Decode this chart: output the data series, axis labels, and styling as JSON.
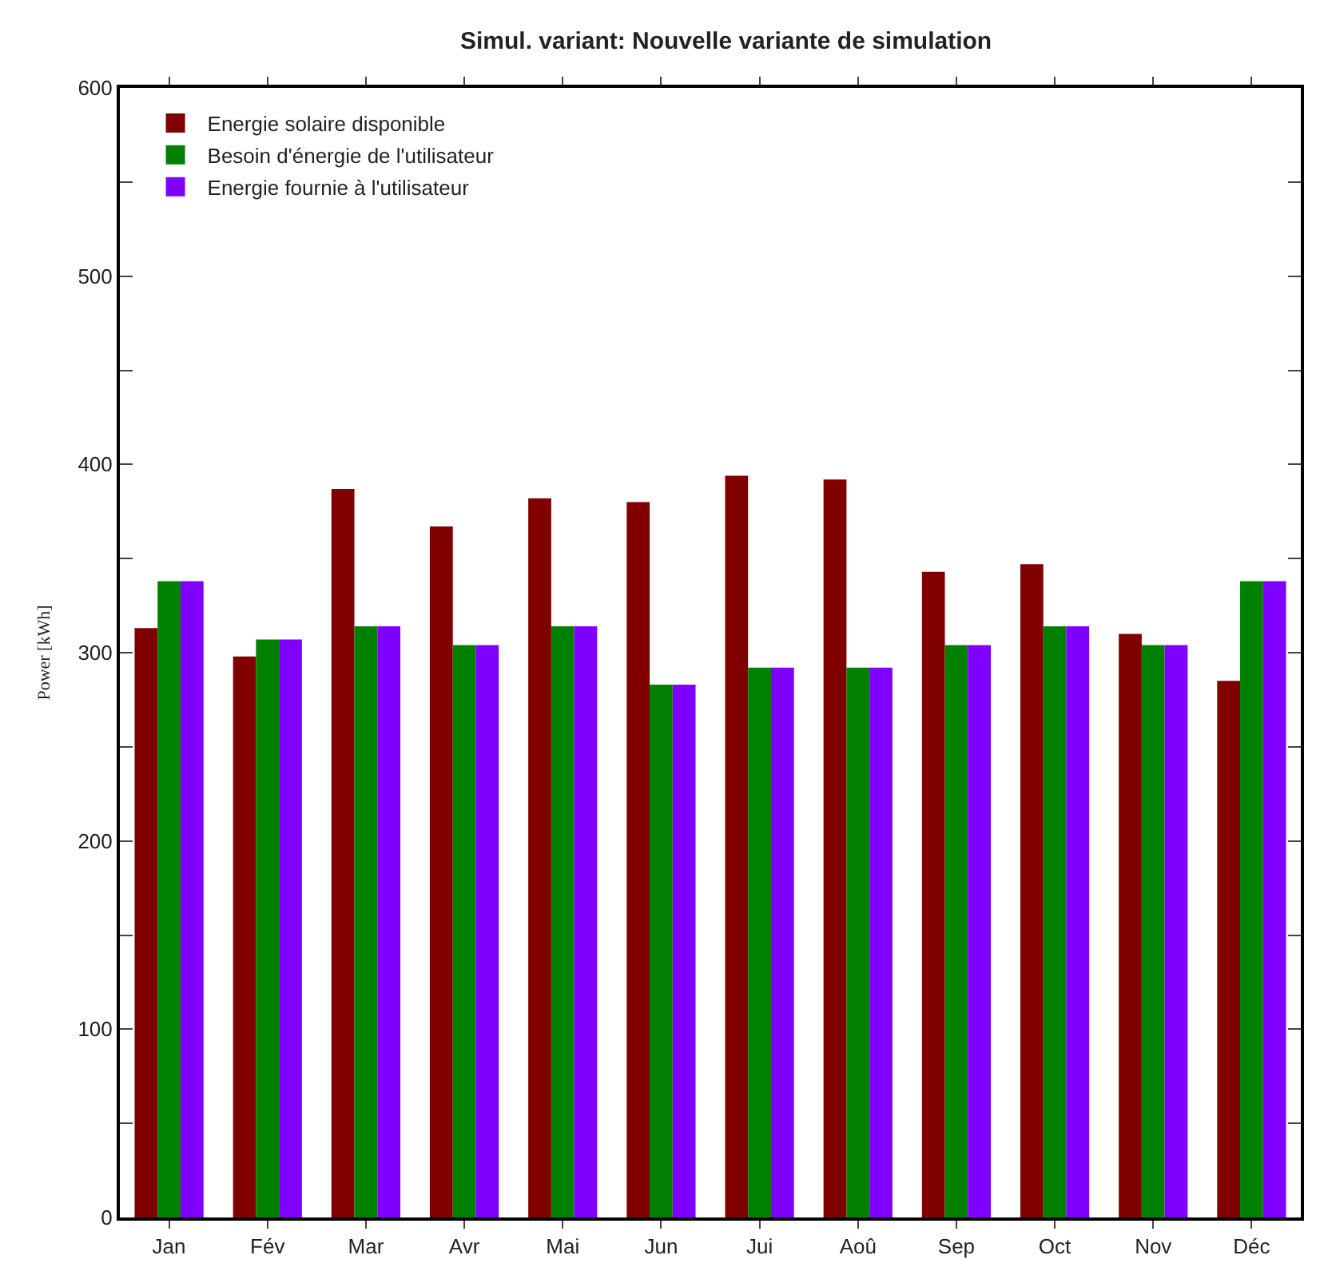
{
  "chart_data": {
    "type": "bar",
    "title": "Simul. variant: Nouvelle variante de simulation",
    "ylabel": "Power [kWh]",
    "categories": [
      "Jan",
      "Fév",
      "Mar",
      "Avr",
      "Mai",
      "Jun",
      "Jui",
      "Aoû",
      "Sep",
      "Oct",
      "Nov",
      "Déc"
    ],
    "series": [
      {
        "name": "Energie solaire disponible",
        "color": "#800000",
        "values": [
          313,
          298,
          387,
          367,
          382,
          380,
          394,
          392,
          343,
          347,
          310,
          285
        ]
      },
      {
        "name": "Besoin d'énergie de l'utilisateur",
        "color": "#008000",
        "values": [
          338,
          307,
          314,
          304,
          314,
          283,
          292,
          292,
          304,
          314,
          304,
          338
        ]
      },
      {
        "name": "Energie fournie à l'utilisateur",
        "color": "#8000ff",
        "values": [
          338,
          307,
          314,
          304,
          314,
          283,
          292,
          292,
          304,
          314,
          304,
          338
        ]
      }
    ],
    "ylim": [
      0,
      600
    ],
    "yticks": [
      0,
      {
        "value": 50,
        "label": null
      },
      100,
      {
        "value": 150,
        "label": null
      },
      200,
      {
        "value": 250,
        "label": null
      },
      300,
      {
        "value": 350,
        "label": null
      },
      400,
      {
        "value": 450,
        "label": null
      },
      500,
      {
        "value": 550,
        "label": null
      },
      600
    ],
    "legend": "top left"
  }
}
